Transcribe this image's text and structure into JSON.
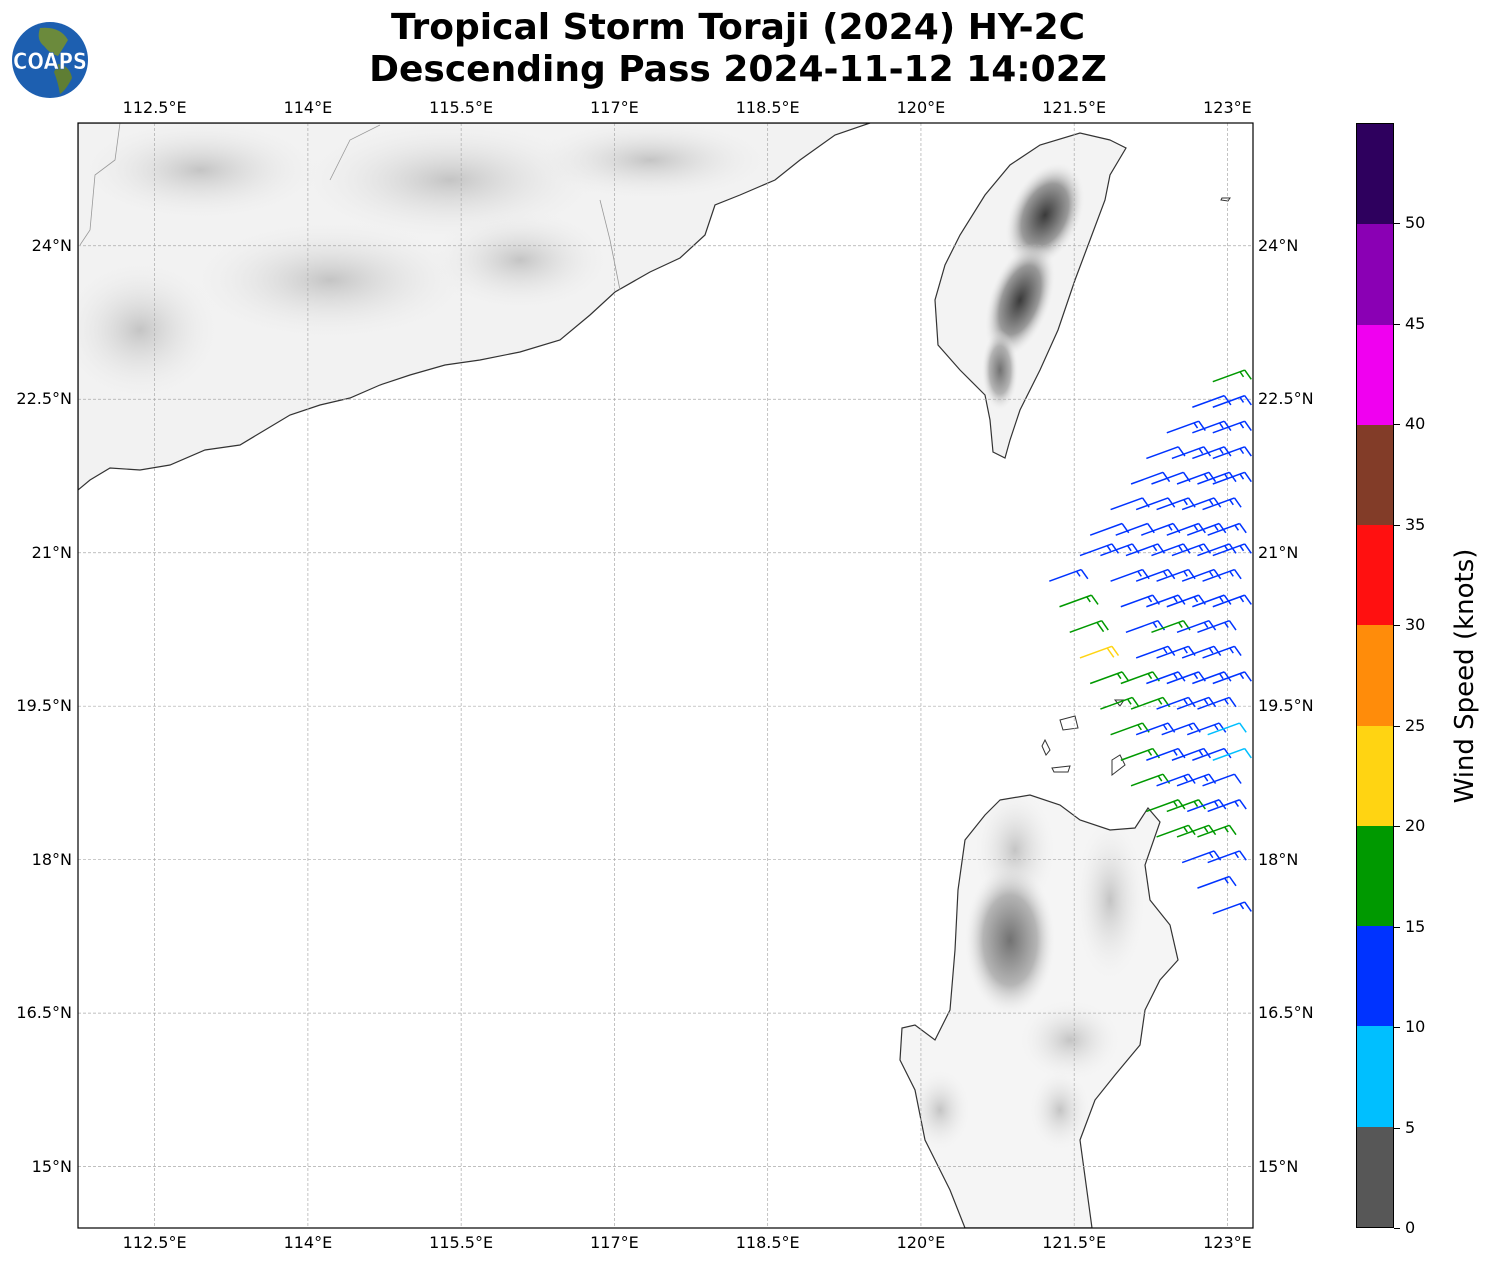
{
  "title": {
    "line1": "Tropical Storm Toraji (2024) HY-2C",
    "line2": "Descending Pass 2024-11-12 14:02Z"
  },
  "logo": {
    "text": "COAPS"
  },
  "map": {
    "lon_range": [
      111.75,
      123.25
    ],
    "lat_range": [
      14.4,
      25.2
    ],
    "lon_ticks": [
      "112.5°E",
      "114°E",
      "115.5°E",
      "117°E",
      "118.5°E",
      "120°E",
      "121.5°E",
      "123°E"
    ],
    "lon_values": [
      112.5,
      114,
      115.5,
      117,
      118.5,
      120,
      121.5,
      123
    ],
    "lat_ticks": [
      "24°N",
      "22.5°N",
      "21°N",
      "19.5°N",
      "18°N",
      "16.5°N",
      "15°N"
    ],
    "lat_values": [
      24,
      22.5,
      21,
      19.5,
      18,
      16.5,
      15
    ]
  },
  "colorbar": {
    "label": "Wind Speed (knots)",
    "ticks": [
      "0",
      "5",
      "10",
      "15",
      "20",
      "25",
      "30",
      "35",
      "40",
      "45",
      "50"
    ],
    "colors": [
      "#575757",
      "#00bfff",
      "#0033ff",
      "#009900",
      "#ffd412",
      "#ff8c0a",
      "#ff1010",
      "#823c28",
      "#f000f0",
      "#8a00b4",
      "#2e005e"
    ]
  },
  "chart_data": {
    "type": "wind-barbs",
    "units": "knots",
    "direction_from_deg": 70,
    "rows": [
      {
        "lat": 22.75,
        "lons": [
          123.15
        ],
        "speeds": [
          17
        ]
      },
      {
        "lat": 22.5,
        "lons": [
          122.95,
          123.15
        ],
        "speeds": [
          12,
          13
        ]
      },
      {
        "lat": 22.25,
        "lons": [
          122.7,
          122.95,
          123.15
        ],
        "speeds": [
          13,
          13,
          13
        ]
      },
      {
        "lat": 22.0,
        "lons": [
          122.5,
          122.75,
          122.95,
          123.15
        ],
        "speeds": [
          12,
          13,
          13,
          13
        ]
      },
      {
        "lat": 21.75,
        "lons": [
          122.35,
          122.55,
          122.8,
          123.0,
          123.15
        ],
        "speeds": [
          10,
          12,
          13,
          13,
          13
        ]
      },
      {
        "lat": 21.5,
        "lons": [
          122.15,
          122.4,
          122.6,
          122.85,
          123.05
        ],
        "speeds": [
          12,
          12,
          13,
          13,
          13
        ]
      },
      {
        "lat": 21.25,
        "lons": [
          121.95,
          122.2,
          122.45,
          122.7,
          122.9,
          123.1
        ],
        "speeds": [
          10,
          12,
          13,
          13,
          13,
          13
        ]
      },
      {
        "lat": 21.05,
        "lons": [
          121.85,
          122.05,
          122.3,
          122.55,
          122.75,
          123.0,
          123.15
        ],
        "speeds": [
          14,
          13,
          13,
          13,
          13,
          13,
          13
        ]
      },
      {
        "lat": 20.8,
        "lons": [
          121.55,
          122.15,
          122.4,
          122.6,
          122.85,
          123.05
        ],
        "speeds": [
          13,
          13,
          13,
          13,
          13,
          13
        ]
      },
      {
        "lat": 20.55,
        "lons": [
          121.65,
          122.25,
          122.5,
          122.7,
          122.95,
          123.15
        ],
        "speeds": [
          17,
          13,
          13,
          13,
          13,
          13
        ]
      },
      {
        "lat": 20.3,
        "lons": [
          121.75,
          122.3,
          122.55,
          122.8,
          123.0
        ],
        "speeds": [
          18,
          13,
          17,
          13,
          13
        ]
      },
      {
        "lat": 20.05,
        "lons": [
          121.85,
          122.4,
          122.6,
          122.85,
          123.05
        ],
        "speeds": [
          22,
          13,
          13,
          13,
          13
        ]
      },
      {
        "lat": 19.8,
        "lons": [
          121.95,
          122.25,
          122.5,
          122.7,
          122.95,
          123.15
        ],
        "speeds": [
          17,
          17,
          13,
          13,
          13,
          13
        ]
      },
      {
        "lat": 19.55,
        "lons": [
          122.05,
          122.35,
          122.6,
          122.8,
          123.0
        ],
        "speeds": [
          17,
          17,
          13,
          13,
          13
        ]
      },
      {
        "lat": 19.3,
        "lons": [
          122.15,
          122.4,
          122.65,
          122.9,
          123.1
        ],
        "speeds": [
          17,
          13,
          13,
          13,
          8
        ]
      },
      {
        "lat": 19.05,
        "lons": [
          122.25,
          122.5,
          122.75,
          122.95,
          123.15
        ],
        "speeds": [
          17,
          13,
          13,
          12,
          8
        ]
      },
      {
        "lat": 18.8,
        "lons": [
          122.35,
          122.6,
          122.8,
          123.05
        ],
        "speeds": [
          17,
          13,
          13,
          12
        ]
      },
      {
        "lat": 18.55,
        "lons": [
          122.5,
          122.7,
          122.9,
          123.1
        ],
        "speeds": [
          17,
          17,
          13,
          13
        ]
      },
      {
        "lat": 18.3,
        "lons": [
          122.6,
          122.8,
          123.0
        ],
        "speeds": [
          17,
          17,
          17
        ]
      },
      {
        "lat": 18.05,
        "lons": [
          122.85,
          123.1
        ],
        "speeds": [
          13,
          13
        ]
      },
      {
        "lat": 17.8,
        "lons": [
          123.0
        ],
        "speeds": [
          13
        ]
      },
      {
        "lat": 17.55,
        "lons": [
          123.15
        ],
        "speeds": [
          13
        ]
      }
    ]
  }
}
